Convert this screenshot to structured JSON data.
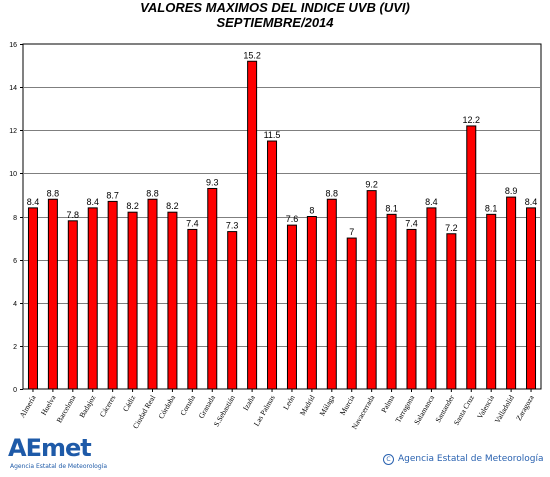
{
  "chart_data": {
    "type": "bar",
    "title": "VALORES MAXIMOS DEL INDICE UVB (UVI)",
    "subtitle": "SEPTIEMBRE/2014",
    "categories": [
      "Almería",
      "Huelva",
      "Barcelona",
      "Badajoz",
      "Cáceres",
      "Cádiz",
      "Ciudad Real",
      "Córdoba",
      "Coruña",
      "Granada",
      "S.Sebastián",
      "Izaña",
      "Las Palmas",
      "León",
      "Madrid",
      "Málaga",
      "Murcia",
      "Navacerrada",
      "Palma",
      "Tarragona",
      "Salamanca",
      "Santander",
      "Santa Cruz",
      "Valencia",
      "Valladolid",
      "Zaragoza"
    ],
    "values": [
      8.4,
      8.8,
      7.8,
      8.4,
      8.7,
      8.2,
      8.8,
      8.2,
      7.4,
      9.3,
      7.3,
      15.2,
      11.5,
      7.6,
      8,
      8.8,
      7,
      9.2,
      8.1,
      7.4,
      8.4,
      7.2,
      12.2,
      8.1,
      8.9,
      8.4
    ],
    "value_labels": [
      "8.4",
      "8.8",
      "7.8",
      "8.4",
      "8.7",
      "8.2",
      "8.8",
      "8.2",
      "7.4",
      "9.3",
      "7.3",
      "15.2",
      "11.5",
      "7.6",
      "8",
      "8.8",
      "7",
      "9.2",
      "8.1",
      "7.4",
      "8.4",
      "7.2",
      "12.2",
      "8.1",
      "8.9",
      "8.4"
    ],
    "ylim": [
      0,
      16
    ],
    "yticks": [
      "0",
      "2",
      "4",
      "6",
      "8",
      "10",
      "12",
      "14",
      "16"
    ],
    "grid": true,
    "colors": {
      "bar": "#ff0000",
      "bar_edge": "#000000",
      "grid": "#7f7f7f",
      "axis": "#000000"
    }
  },
  "logo": {
    "text": "AEmet",
    "subtitle": "Agencia Estatal de Meteorología"
  },
  "copyright": "Agencia Estatal de Meteorología"
}
